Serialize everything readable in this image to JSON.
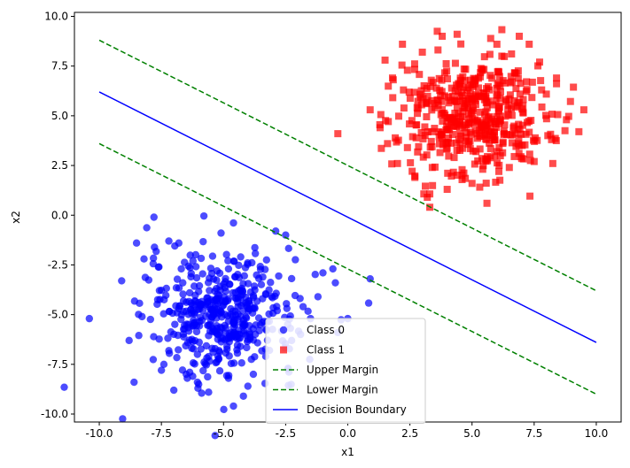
{
  "chart_data": {
    "type": "scatter",
    "title": "",
    "xlabel": "x1",
    "ylabel": "x2",
    "xlim": [
      -11.0,
      11.0
    ],
    "ylim": [
      -10.4,
      10.2
    ],
    "xticks": [
      -10.0,
      -7.5,
      -5.0,
      -2.5,
      0.0,
      2.5,
      5.0,
      7.5,
      10.0
    ],
    "yticks": [
      -10.0,
      -7.5,
      -5.0,
      -2.5,
      0.0,
      2.5,
      5.0,
      7.5,
      10.0
    ],
    "grid": false,
    "legend_position": "bottom-center",
    "scatter_series": [
      {
        "name": "Class 0",
        "marker": "circle",
        "color": "#0000ff",
        "cluster_center": [
          -5.0,
          -5.0
        ],
        "cluster_spread": 1.5,
        "point_count": 500,
        "points": [
          [
            -10.4,
            -5.2
          ],
          [
            -9.1,
            -3.3
          ],
          [
            -8.8,
            -6.3
          ],
          [
            -8.6,
            -8.4
          ],
          [
            -8.5,
            -1.4
          ],
          [
            -8.2,
            -2.2
          ],
          [
            -7.8,
            -0.1
          ],
          [
            -7.6,
            -2.6
          ],
          [
            -7.5,
            -7.8
          ],
          [
            -7.4,
            -7.5
          ],
          [
            -7.2,
            -1.3
          ],
          [
            -7.0,
            -8.8
          ],
          [
            -6.8,
            -1.4
          ],
          [
            -6.5,
            -8.0
          ],
          [
            -6.0,
            -8.5
          ],
          [
            -5.6,
            -8.9
          ],
          [
            -5.1,
            -0.9
          ],
          [
            -4.8,
            -8.2
          ],
          [
            -4.6,
            -9.6
          ],
          [
            -4.2,
            -9.1
          ],
          [
            -3.8,
            -8.0
          ],
          [
            -3.3,
            -7.1
          ],
          [
            -2.9,
            -0.8
          ],
          [
            -2.5,
            -1.0
          ],
          [
            -2.4,
            -7.7
          ],
          [
            -1.9,
            -6.0
          ],
          [
            -1.8,
            -4.6
          ],
          [
            -1.5,
            -5.2
          ],
          [
            -1.2,
            -4.1
          ],
          [
            -1.0,
            -2.9
          ],
          [
            -0.6,
            -2.7
          ],
          [
            -0.5,
            -3.4
          ],
          [
            -0.4,
            -5.9
          ],
          [
            0.0,
            -5.2
          ],
          [
            0.9,
            -3.2
          ]
        ]
      },
      {
        "name": "Class 1",
        "marker": "square",
        "color": "#ff0000",
        "cluster_center": [
          5.0,
          5.0
        ],
        "cluster_spread": 1.5,
        "point_count": 500,
        "points": [
          [
            -0.4,
            4.1
          ],
          [
            0.9,
            5.3
          ],
          [
            1.3,
            4.4
          ],
          [
            1.5,
            7.8
          ],
          [
            1.6,
            3.6
          ],
          [
            1.8,
            6.9
          ],
          [
            2.0,
            2.6
          ],
          [
            2.2,
            8.6
          ],
          [
            2.4,
            3.4
          ],
          [
            2.7,
            1.9
          ],
          [
            3.0,
            8.2
          ],
          [
            3.2,
            0.9
          ],
          [
            3.3,
            0.4
          ],
          [
            3.4,
            2.4
          ],
          [
            3.8,
            9.0
          ],
          [
            4.0,
            1.3
          ],
          [
            4.4,
            9.1
          ],
          [
            4.6,
            2.0
          ],
          [
            5.0,
            1.6
          ],
          [
            5.6,
            0.6
          ],
          [
            6.0,
            8.6
          ],
          [
            6.2,
            8.0
          ],
          [
            6.5,
            2.4
          ],
          [
            6.9,
            9.0
          ],
          [
            7.3,
            8.6
          ],
          [
            7.5,
            2.7
          ],
          [
            7.8,
            6.3
          ],
          [
            8.2,
            3.8
          ],
          [
            8.4,
            6.9
          ],
          [
            8.8,
            4.8
          ],
          [
            9.3,
            4.2
          ],
          [
            9.5,
            5.3
          ],
          [
            6.0,
            3.2
          ],
          [
            4.8,
            6.3
          ],
          [
            5.2,
            4.7
          ]
        ]
      }
    ],
    "line_series": [
      {
        "name": "Upper Margin",
        "color": "#008000",
        "style": "dashed",
        "x": [
          -10.0,
          10.0
        ],
        "y": [
          8.8,
          -3.8
        ]
      },
      {
        "name": "Lower Margin",
        "color": "#008000",
        "style": "dashed",
        "x": [
          -10.0,
          10.0
        ],
        "y": [
          3.6,
          -9.0
        ]
      },
      {
        "name": "Decision Boundary",
        "color": "#0000ff",
        "style": "solid",
        "x": [
          -10.0,
          10.0
        ],
        "y": [
          6.2,
          -6.4
        ]
      }
    ],
    "legend": [
      "Class 0",
      "Class 1",
      "Upper Margin",
      "Lower Margin",
      "Decision Boundary"
    ]
  }
}
